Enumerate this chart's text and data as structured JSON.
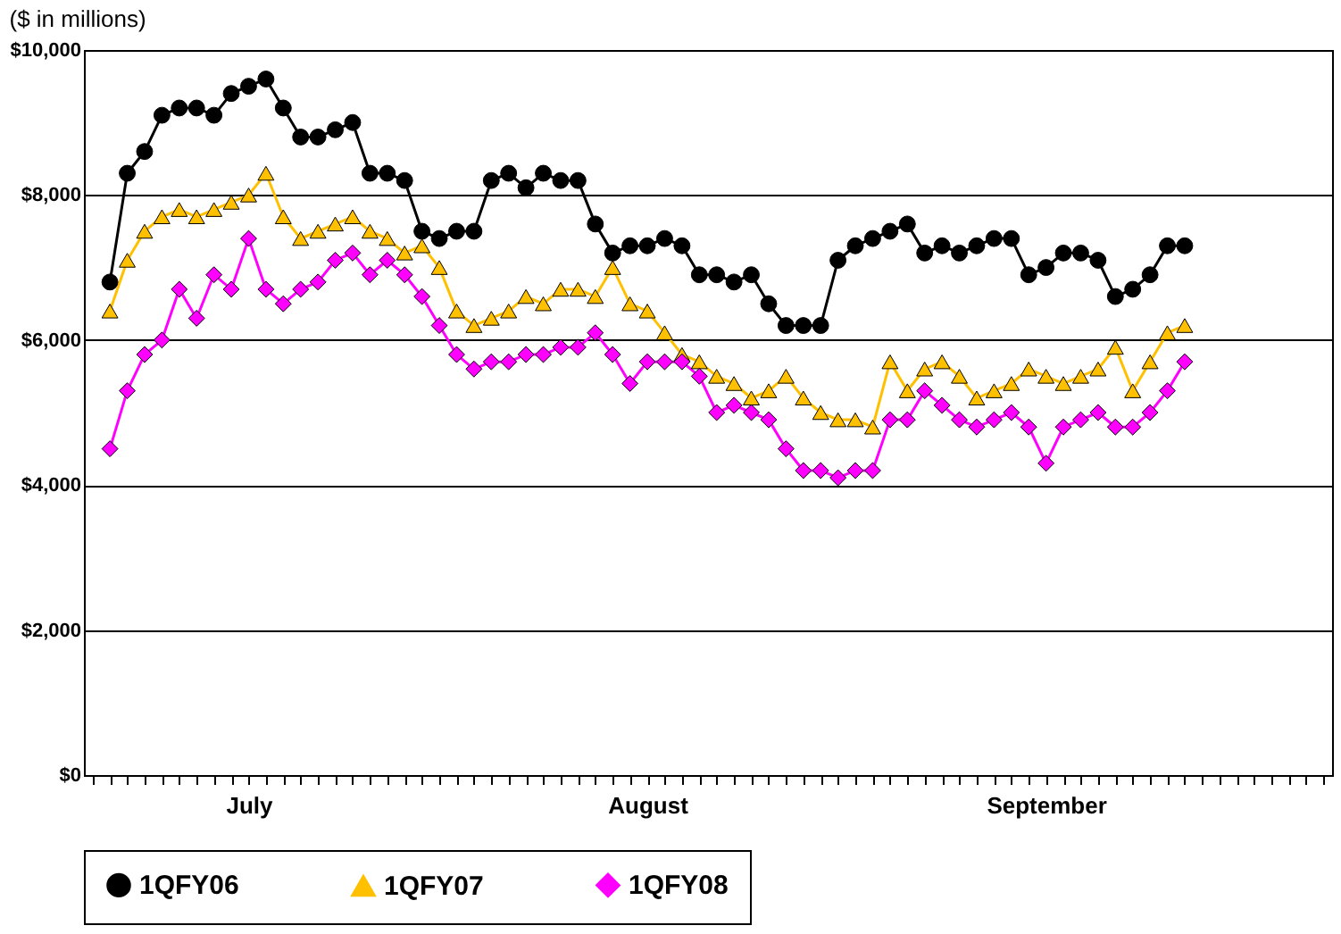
{
  "chart_data": {
    "type": "line",
    "title": "($ in millions)",
    "categories": [
      null,
      null,
      null,
      null,
      null,
      null,
      null,
      null,
      null,
      "July",
      null,
      null,
      null,
      null,
      null,
      null,
      null,
      null,
      null,
      null,
      null,
      null,
      null,
      null,
      null,
      null,
      null,
      null,
      null,
      null,
      null,
      null,
      "August",
      null,
      null,
      null,
      null,
      null,
      null,
      null,
      null,
      null,
      null,
      null,
      null,
      null,
      null,
      null,
      null,
      null,
      null,
      null,
      null,
      null,
      null,
      "September",
      null,
      null,
      null,
      null,
      null,
      null,
      null,
      null,
      null,
      null,
      null,
      null,
      null,
      null,
      null,
      null
    ],
    "series": [
      {
        "name": "1QFY06",
        "color": "#000000",
        "marker": "circle",
        "values": [
          null,
          6800,
          8300,
          8600,
          9100,
          9200,
          9200,
          9100,
          9400,
          9500,
          9600,
          9200,
          8800,
          8800,
          8900,
          9000,
          8300,
          8300,
          8200,
          7500,
          7400,
          7500,
          7500,
          8200,
          8300,
          8100,
          8300,
          8200,
          8200,
          7600,
          7200,
          7300,
          7300,
          7400,
          7300,
          6900,
          6900,
          6800,
          6900,
          6500,
          6200,
          6200,
          6200,
          7100,
          7300,
          7400,
          7500,
          7600,
          7200,
          7300,
          7200,
          7300,
          7400,
          7400,
          6900,
          7000,
          7200,
          7200,
          7100,
          6600,
          6700,
          6900,
          7300,
          7300,
          null,
          null,
          null,
          null,
          null,
          null,
          null,
          null
        ]
      },
      {
        "name": "1QFY07",
        "color": "#ffc000",
        "marker": "triangle",
        "values": [
          null,
          6400,
          7100,
          7500,
          7700,
          7800,
          7700,
          7800,
          7900,
          8000,
          8300,
          7700,
          7400,
          7500,
          7600,
          7700,
          7500,
          7400,
          7200,
          7300,
          7000,
          6400,
          6200,
          6300,
          6400,
          6600,
          6500,
          6700,
          6700,
          6600,
          7000,
          6500,
          6400,
          6100,
          5800,
          5700,
          5500,
          5400,
          5200,
          5300,
          5500,
          5200,
          5000,
          4900,
          4900,
          4800,
          5700,
          5300,
          5600,
          5700,
          5500,
          5200,
          5300,
          5400,
          5600,
          5500,
          5400,
          5500,
          5600,
          5900,
          5300,
          5700,
          6100,
          6200,
          null,
          null,
          null,
          null,
          null,
          null,
          null,
          null
        ]
      },
      {
        "name": "1QFY08",
        "color": "#ff00ff",
        "marker": "diamond",
        "values": [
          null,
          4500,
          5300,
          5800,
          6000,
          6700,
          6300,
          6900,
          6700,
          7400,
          6700,
          6500,
          6700,
          6800,
          7100,
          7200,
          6900,
          7100,
          6900,
          6600,
          6200,
          5800,
          5600,
          5700,
          5700,
          5800,
          5800,
          5900,
          5900,
          6100,
          5800,
          5400,
          5700,
          5700,
          5700,
          5500,
          5000,
          5100,
          5000,
          4900,
          4500,
          4200,
          4200,
          4100,
          4200,
          4200,
          4900,
          4900,
          5300,
          5100,
          4900,
          4800,
          4900,
          5000,
          4800,
          4300,
          4800,
          4900,
          5000,
          4800,
          4800,
          5000,
          5300,
          5700,
          null,
          null,
          null,
          null,
          null,
          null,
          null,
          null
        ]
      }
    ],
    "ylim": [
      0,
      10000
    ],
    "yticks": [
      {
        "value": 0,
        "label": "$0"
      },
      {
        "value": 2000,
        "label": "$2,000"
      },
      {
        "value": 4000,
        "label": "$4,000"
      },
      {
        "value": 6000,
        "label": "$6,000"
      },
      {
        "value": 8000,
        "label": "$8,000"
      },
      {
        "value": 10000,
        "label": "$10,000"
      }
    ],
    "grid": "y",
    "legend": "bottom",
    "line_style": "solid"
  }
}
